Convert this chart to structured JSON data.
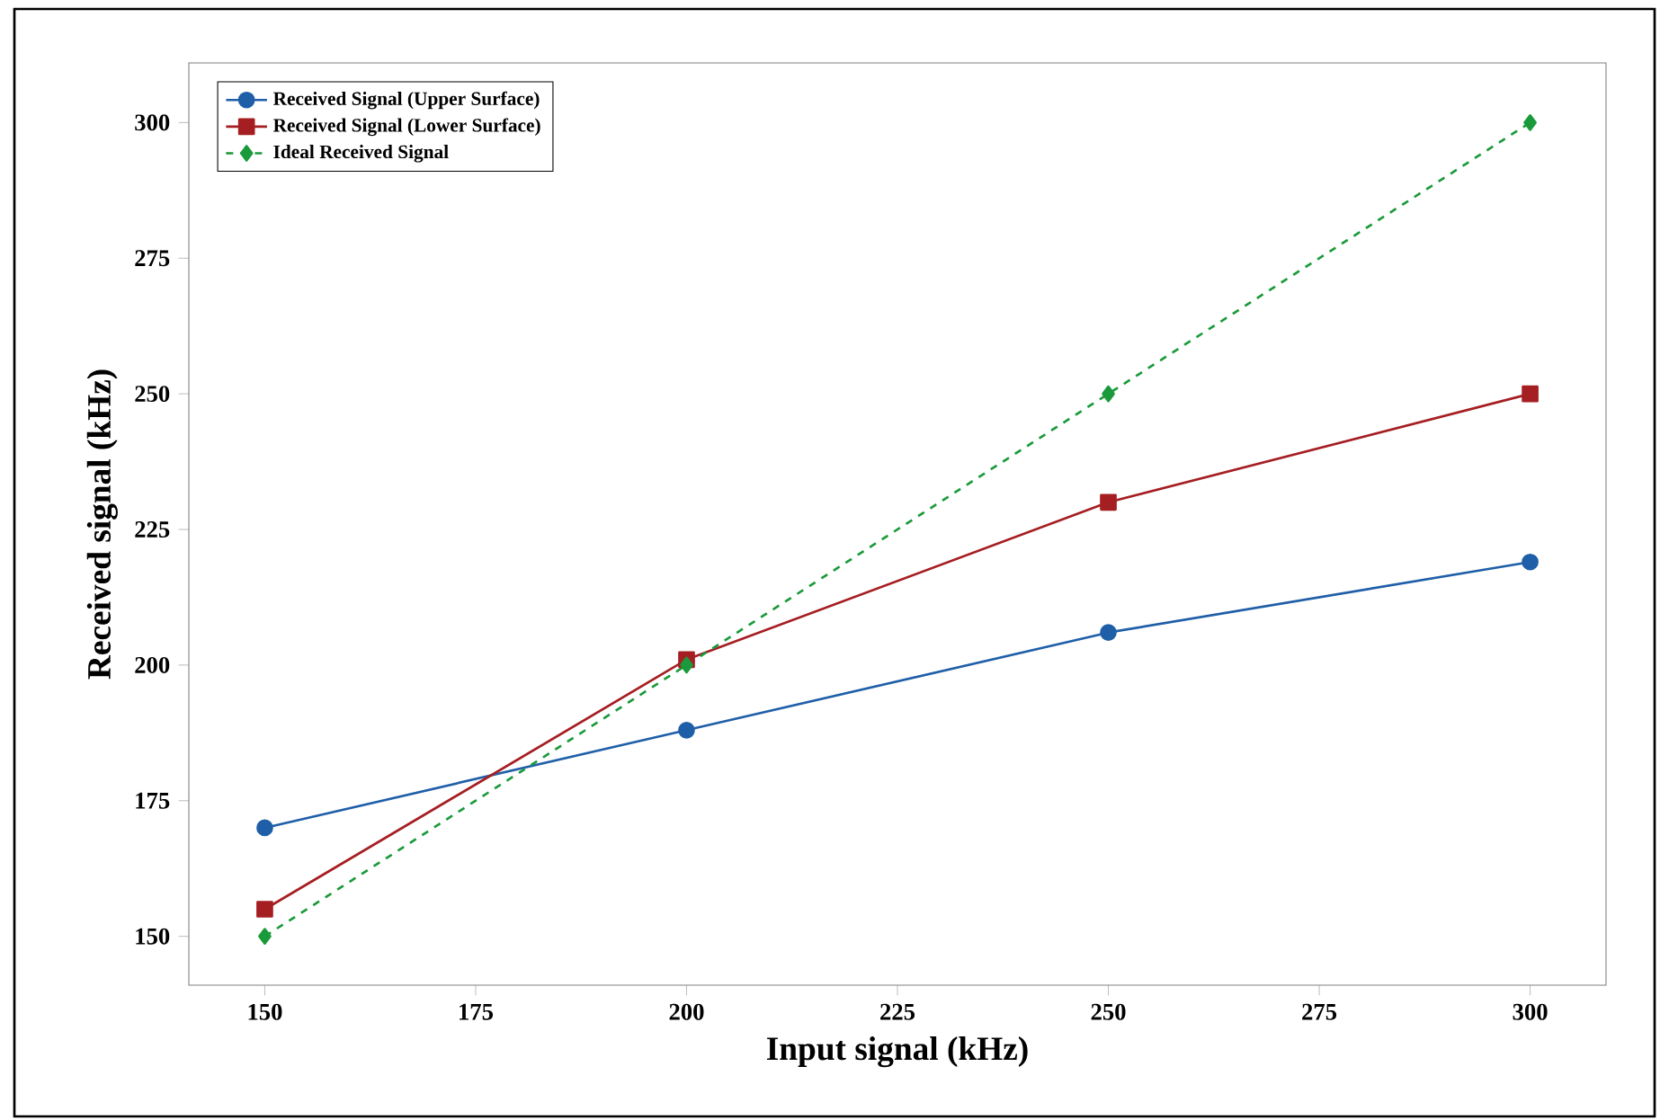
{
  "chart_data": {
    "type": "line",
    "xlabel": "Input signal (kHz)",
    "ylabel": "Received signal (kHz)",
    "x": [
      150,
      200,
      250,
      300
    ],
    "series": [
      {
        "name": "Received Signal (Upper Surface)",
        "color": "#1f5fa8",
        "values": [
          170,
          188,
          206,
          219
        ],
        "marker": "circle",
        "line_style": "solid"
      },
      {
        "name": "Received Signal (Lower Surface)",
        "color": "#a51e22",
        "values": [
          155,
          201,
          230,
          250
        ],
        "marker": "square",
        "line_style": "solid"
      },
      {
        "name": "Ideal Received Signal",
        "color": "#1a9a3a",
        "values": [
          150,
          200,
          250,
          300
        ],
        "marker": "diamond",
        "line_style": "dashed"
      }
    ],
    "xlim": [
      141,
      309
    ],
    "ylim": [
      141,
      311
    ],
    "xticks": [
      150,
      175,
      200,
      225,
      250,
      275,
      300
    ],
    "yticks": [
      150,
      175,
      200,
      225,
      250,
      275,
      300
    ],
    "grid": false,
    "legend": "top left"
  }
}
